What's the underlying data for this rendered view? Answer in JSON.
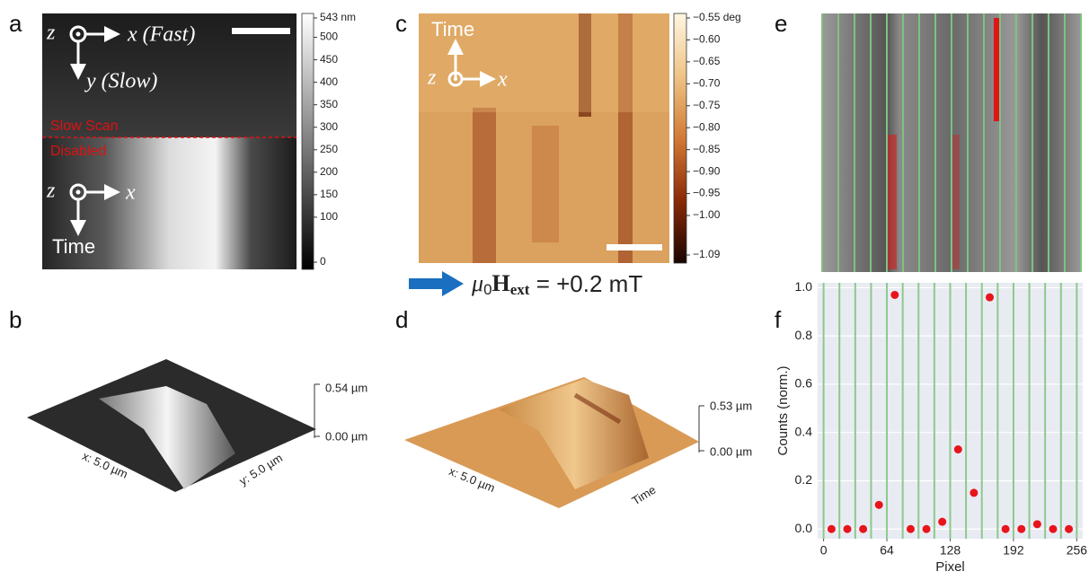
{
  "panel_labels": [
    "a",
    "b",
    "c",
    "d",
    "e",
    "f"
  ],
  "panel_a": {
    "z1": "z",
    "x1": "x (Fast)",
    "y1": "y (Slow)",
    "slow": "Slow Scan",
    "disabled": "Disabled",
    "z2": "z",
    "x2": "x",
    "time": "Time"
  },
  "panel_b": {
    "xlabel": "x: 5.0 µm",
    "ylabel": "y: 5.0 µm",
    "ztop": "0.54 µm",
    "zbottom": "0.00 µm"
  },
  "panel_c": {
    "time": "Time",
    "z": "z",
    "x": "x"
  },
  "panel_d": {
    "xlabel": "x: 5.0 µm",
    "timelabel": "Time",
    "ztop": "0.53 µm",
    "zbottom": "0.00 µm"
  },
  "field": {
    "mu": "μ",
    "mu_sub": "0",
    "H": "H",
    "H_sub": "ext",
    "rest": " = +0.2 mT"
  },
  "chart_data": [
    {
      "type": "colorbar",
      "colors": [
        "#000000",
        "#ffffff"
      ],
      "ylim": [
        0,
        543
      ],
      "yticks": [
        {
          "value": 543,
          "label": "543 nm"
        },
        500,
        450,
        400,
        350,
        300,
        250,
        200,
        150,
        100,
        0
      ]
    },
    {
      "type": "colorbar",
      "colors": [
        "#1a0500",
        "#8a2a08",
        "#d27a35",
        "#efc486",
        "#fff6e2"
      ],
      "ylim": [
        -1.09,
        -0.55
      ],
      "yticks": [
        {
          "value": -0.55,
          "label": "−0.55 deg"
        },
        {
          "value": -0.6,
          "label": "−0.60"
        },
        {
          "value": -0.65,
          "label": "−0.65"
        },
        {
          "value": -0.7,
          "label": "−0.70"
        },
        {
          "value": -0.75,
          "label": "−0.75"
        },
        {
          "value": -0.8,
          "label": "−0.80"
        },
        {
          "value": -0.85,
          "label": "−0.85"
        },
        {
          "value": -0.9,
          "label": "−0.90"
        },
        {
          "value": -0.95,
          "label": "−0.95"
        },
        {
          "value": -1.0,
          "label": "−1.00"
        },
        {
          "value": -1.09,
          "label": "−1.09"
        }
      ]
    },
    {
      "type": "scatter",
      "xlabel": "Pixel",
      "ylabel": "Counts (norm.)",
      "color": "#e8141b",
      "grid": true,
      "xlim": [
        -6,
        262
      ],
      "ylim": [
        -0.04,
        1.02
      ],
      "xticks": [
        0,
        64,
        128,
        192,
        256
      ],
      "yticks": [
        {
          "value": 0,
          "label": "0.0"
        },
        0.2,
        0.4,
        0.6,
        0.8,
        {
          "value": 1,
          "label": "1.0"
        }
      ],
      "x": [
        8,
        24,
        40,
        56,
        72,
        88,
        104,
        120,
        136,
        152,
        168,
        184,
        200,
        216,
        232,
        248
      ],
      "values": [
        0,
        0,
        0,
        0.1,
        0.97,
        0,
        0,
        0.03,
        0.33,
        0.15,
        0.96,
        0,
        0,
        0.02,
        0,
        0
      ]
    }
  ]
}
